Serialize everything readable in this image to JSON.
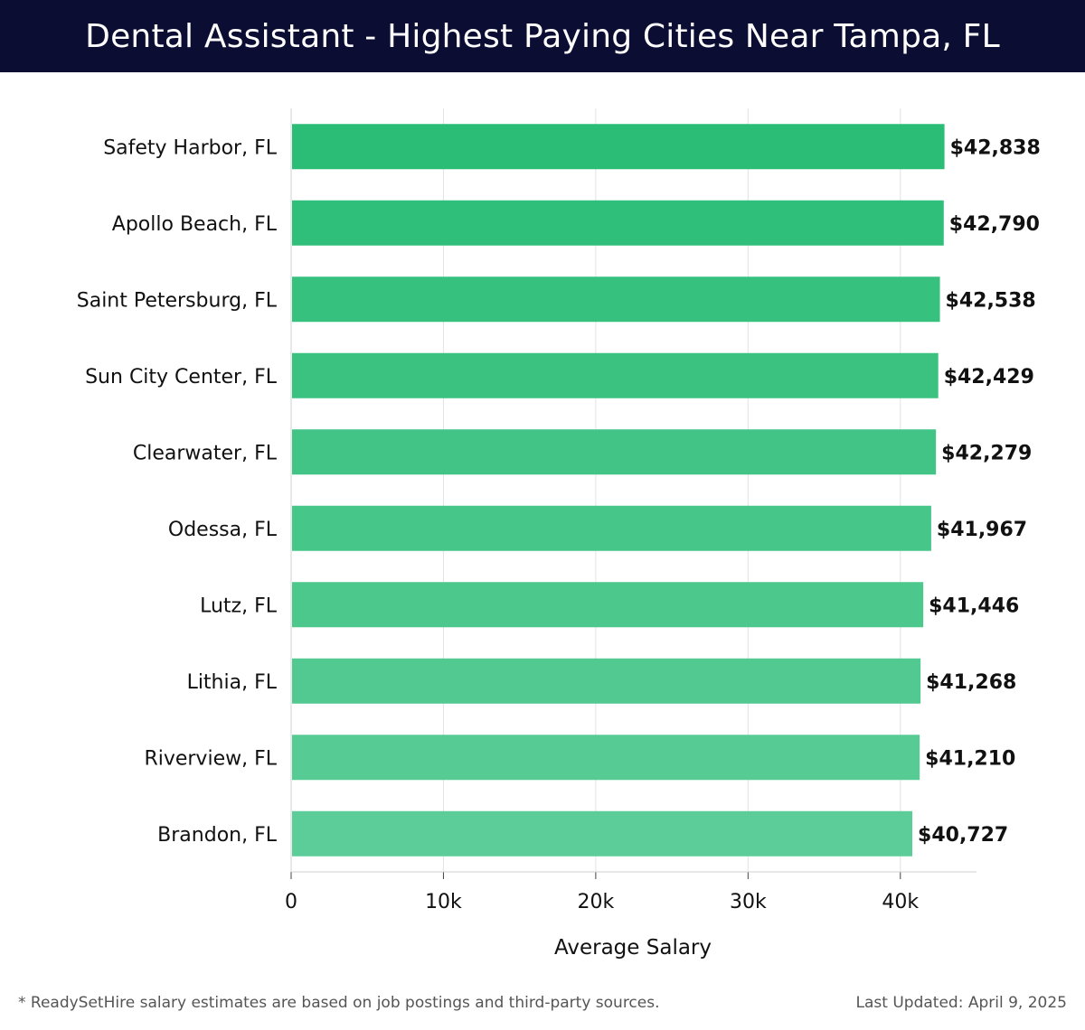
{
  "header": {
    "title": "Dental Assistant - Highest Paying Cities Near Tampa, FL"
  },
  "footer": {
    "note": "* ReadySetHire salary estimates are based on job postings and third-party sources.",
    "updated": "Last Updated: April 9, 2025"
  },
  "colors": {
    "header_bg": "#0b0d33",
    "bar_dark": "#2bbd76",
    "bar_light": "#5ccd98",
    "grid": "#e2e2e2",
    "label": "#111111"
  },
  "chart_data": {
    "type": "bar",
    "orientation": "horizontal",
    "title": "Dental Assistant - Highest Paying Cities Near Tampa, FL",
    "xlabel": "Average Salary",
    "ylabel": "",
    "xlim": [
      0,
      45000
    ],
    "grid": true,
    "ticks": [
      {
        "value": 0,
        "label": "0"
      },
      {
        "value": 10000,
        "label": "10k"
      },
      {
        "value": 20000,
        "label": "20k"
      },
      {
        "value": 30000,
        "label": "30k"
      },
      {
        "value": 40000,
        "label": "40k"
      }
    ],
    "categories": [
      "Safety Harbor, FL",
      "Apollo Beach, FL",
      "Saint Petersburg, FL",
      "Sun City Center, FL",
      "Clearwater, FL",
      "Odessa, FL",
      "Lutz, FL",
      "Lithia, FL",
      "Riverview, FL",
      "Brandon, FL"
    ],
    "values": [
      42838,
      42790,
      42538,
      42429,
      42279,
      41967,
      41446,
      41268,
      41210,
      40727
    ],
    "value_labels": [
      "$42,838",
      "$42,790",
      "$42,538",
      "$42,429",
      "$42,279",
      "$41,967",
      "$41,446",
      "$41,268",
      "$41,210",
      "$40,727"
    ]
  }
}
